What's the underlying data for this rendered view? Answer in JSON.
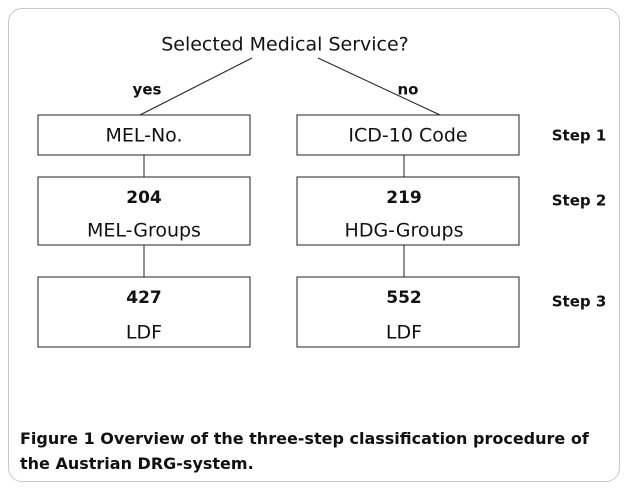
{
  "header": {
    "title": "Selected Medical Service?"
  },
  "branches": [
    "yes",
    "no"
  ],
  "columns": [
    {
      "step1": "MEL-No.",
      "step2": {
        "count": 204,
        "label": "MEL-Groups"
      },
      "step3": {
        "count": 427,
        "label": "LDF"
      }
    },
    {
      "step1": "ICD-10 Code",
      "step2": {
        "count": 219,
        "label": "HDG-Groups"
      },
      "step3": {
        "count": 552,
        "label": "LDF"
      }
    }
  ],
  "steps": [
    "Step 1",
    "Step 2",
    "Step 3"
  ],
  "caption": {
    "label": "Figure 1",
    "text": "Overview of the three-step classification procedure of the Austrian DRG-system."
  }
}
